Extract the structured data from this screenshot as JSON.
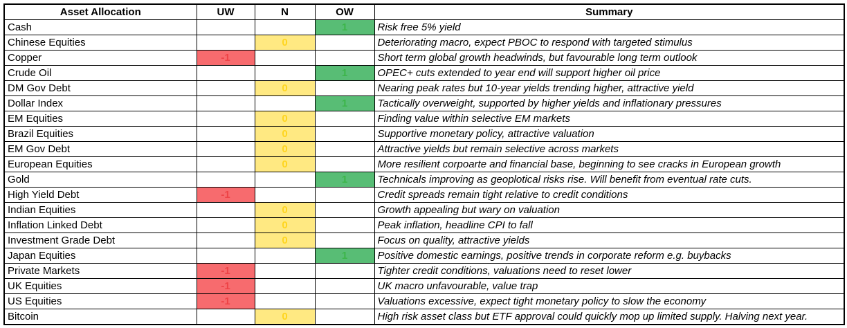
{
  "colors": {
    "uw-bg": "#F76B6E",
    "uw-text": "#EE4347",
    "n-bg": "#FFE982",
    "n-text": "#FFD51E",
    "ow-bg": "#58BD75",
    "ow-text": "#3CB549"
  },
  "table": {
    "headers": [
      "Asset Allocation",
      "UW",
      "N",
      "OW",
      "Summary"
    ],
    "rows": [
      {
        "asset": "Cash",
        "rating": "OW",
        "value": 1,
        "summary": "Risk free 5% yield"
      },
      {
        "asset": "Chinese Equities",
        "rating": "N",
        "value": 0,
        "summary": "Deteriorating macro, expect PBOC to respond with targeted stimulus"
      },
      {
        "asset": "Copper",
        "rating": "UW",
        "value": -1,
        "summary": "Short term global growth headwinds, but favourable long term outlook"
      },
      {
        "asset": "Crude Oil",
        "rating": "OW",
        "value": 1,
        "summary": "OPEC+ cuts extended to year end will support higher oil price"
      },
      {
        "asset": "DM Gov Debt",
        "rating": "N",
        "value": 0,
        "summary": "Nearing peak rates but 10-year yields trending higher, attractive yield"
      },
      {
        "asset": "Dollar Index",
        "rating": "OW",
        "value": 1,
        "summary": "Tactically overweight, supported by higher yields and inflationary pressures"
      },
      {
        "asset": "EM Equities",
        "rating": "N",
        "value": 0,
        "summary": "Finding value within selective EM markets"
      },
      {
        "asset": "Brazil Equities",
        "rating": "N",
        "value": 0,
        "summary": "Supportive monetary policy, attractive valuation"
      },
      {
        "asset": "EM Gov Debt",
        "rating": "N",
        "value": 0,
        "summary": "Attractive yields but remain selective across markets"
      },
      {
        "asset": "European Equities",
        "rating": "N",
        "value": 0,
        "summary": "More resilient corpoarte and financial base, beginning to see cracks in European growth"
      },
      {
        "asset": "Gold",
        "rating": "OW",
        "value": 1,
        "summary": "Technicals improving as geoplotical risks rise. Will benefit from eventual rate cuts."
      },
      {
        "asset": "High Yield Debt",
        "rating": "UW",
        "value": -1,
        "summary": "Credit spreads remain tight relative to credit conditions"
      },
      {
        "asset": "Indian Equities",
        "rating": "N",
        "value": 0,
        "summary": "Growth appealing but wary on valuation"
      },
      {
        "asset": "Inflation Linked Debt",
        "rating": "N",
        "value": 0,
        "summary": "Peak inflation, headline CPI to fall"
      },
      {
        "asset": "Investment Grade Debt",
        "rating": "N",
        "value": 0,
        "summary": "Focus on quality, attractive yields"
      },
      {
        "asset": "Japan Equities",
        "rating": "OW",
        "value": 1,
        "summary": "Positive domestic earnings, positive trends in corporate reform e.g. buybacks"
      },
      {
        "asset": "Private Markets",
        "rating": "UW",
        "value": -1,
        "summary": "Tighter credit conditions, valuations need to reset lower"
      },
      {
        "asset": "UK Equities",
        "rating": "UW",
        "value": -1,
        "summary": "UK macro unfavourable, value trap"
      },
      {
        "asset": "US Equities",
        "rating": "UW",
        "value": -1,
        "summary": "Valuations excessive, expect tight monetary policy to slow the economy"
      },
      {
        "asset": "Bitcoin",
        "rating": "N",
        "value": 0,
        "summary": "High risk asset class but ETF approval could quickly mop up limited supply. Halving next year."
      }
    ]
  }
}
